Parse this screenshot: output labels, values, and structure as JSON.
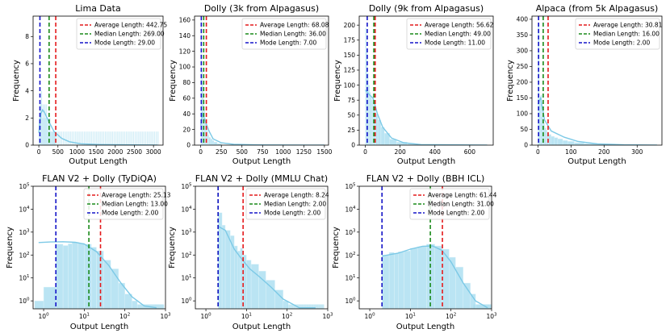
{
  "colors": {
    "hist_fill": "#aee0f1",
    "hist_edge": "#dff3fa",
    "kde_line": "#7cc9e6",
    "average": "#e41a1c",
    "median": "#1a8a1a",
    "mode": "#1515c8"
  },
  "chart_data": [
    {
      "type": "histogram",
      "title": "Lima Data",
      "xlabel": "Output Length",
      "ylabel": "Frequency",
      "yscale": "linear",
      "xlim": [
        -150,
        3250
      ],
      "ylim": [
        0,
        9.5
      ],
      "xticks": [
        0,
        500,
        1000,
        1500,
        2000,
        2500,
        3000
      ],
      "yticks": [
        0,
        2,
        4,
        6,
        8
      ],
      "hist": {
        "bin_width": 15,
        "dense": [
          [
            0,
            2
          ],
          [
            20,
            3
          ],
          [
            40,
            3
          ],
          [
            60,
            4
          ],
          [
            80,
            2
          ],
          [
            100,
            3
          ],
          [
            120,
            2
          ],
          [
            140,
            3
          ],
          [
            160,
            2
          ],
          [
            180,
            3
          ],
          [
            200,
            2
          ],
          [
            220,
            2
          ],
          [
            240,
            1
          ],
          [
            260,
            2
          ],
          [
            280,
            2
          ],
          [
            300,
            1
          ],
          [
            320,
            1
          ],
          [
            350,
            1
          ],
          [
            380,
            1
          ],
          [
            420,
            1
          ]
        ],
        "sparse_range": [
          400,
          3150
        ],
        "sparse_height": 1
      },
      "kde": [
        [
          0,
          0.9
        ],
        [
          50,
          2.3
        ],
        [
          100,
          2.6
        ],
        [
          150,
          2.4
        ],
        [
          250,
          1.8
        ],
        [
          400,
          1.0
        ],
        [
          600,
          0.5
        ],
        [
          800,
          0.25
        ],
        [
          1100,
          0.1
        ],
        [
          1600,
          0.04
        ],
        [
          3100,
          0.0
        ]
      ],
      "stats": {
        "average": 442.75,
        "median": 269.0,
        "mode": 29.0
      },
      "legend": [
        "Average Length: 442.75",
        "Median Length: 269.00",
        "Mode Length: 29.00"
      ]
    },
    {
      "type": "histogram",
      "title": "Dolly (3k from Alpagasus)",
      "xlabel": "Output Length",
      "ylabel": "Frequency",
      "yscale": "linear",
      "xlim": [
        -75,
        1550
      ],
      "ylim": [
        0,
        165
      ],
      "xticks": [
        0,
        250,
        500,
        750,
        1000,
        1250,
        1500
      ],
      "yticks": [
        0,
        20,
        40,
        60,
        80,
        100,
        120,
        140,
        160
      ],
      "hist": {
        "bin_width": 10,
        "dense": [
          [
            0,
            160
          ],
          [
            10,
            95
          ],
          [
            20,
            80
          ],
          [
            30,
            60
          ],
          [
            40,
            45
          ],
          [
            50,
            35
          ],
          [
            60,
            28
          ],
          [
            70,
            22
          ],
          [
            80,
            17
          ],
          [
            90,
            13
          ],
          [
            100,
            10
          ],
          [
            120,
            8
          ],
          [
            140,
            6
          ],
          [
            160,
            4
          ],
          [
            200,
            2
          ],
          [
            250,
            1
          ]
        ],
        "sparse_range": [
          300,
          1400
        ],
        "sparse_height": 0.5
      },
      "kde": [
        [
          0,
          25
        ],
        [
          20,
          40
        ],
        [
          50,
          32
        ],
        [
          100,
          18
        ],
        [
          150,
          8
        ],
        [
          250,
          3
        ],
        [
          400,
          1
        ],
        [
          700,
          0.3
        ],
        [
          1500,
          0
        ]
      ],
      "stats": {
        "average": 68.08,
        "median": 36.0,
        "mode": 7.0
      },
      "legend": [
        "Average Length: 68.08",
        "Median Length: 36.00",
        "Mode Length: 7.00"
      ]
    },
    {
      "type": "histogram",
      "title": "Dolly (9k from Alpagasus)",
      "xlabel": "Output Length",
      "ylabel": "Frequency",
      "yscale": "linear",
      "xlim": [
        -35,
        735
      ],
      "ylim": [
        0,
        215
      ],
      "xticks": [
        0,
        200,
        400,
        600
      ],
      "yticks": [
        0,
        25,
        50,
        75,
        100,
        125,
        150,
        175,
        200
      ],
      "hist": {
        "bin_width": 6,
        "dense": [
          [
            0,
            195
          ],
          [
            6,
            160
          ],
          [
            12,
            120
          ],
          [
            18,
            100
          ],
          [
            24,
            88
          ],
          [
            30,
            80
          ],
          [
            36,
            76
          ],
          [
            42,
            72
          ],
          [
            48,
            66
          ],
          [
            54,
            60
          ],
          [
            60,
            52
          ],
          [
            72,
            42
          ],
          [
            90,
            30
          ],
          [
            110,
            20
          ],
          [
            140,
            10
          ],
          [
            180,
            5
          ],
          [
            240,
            2
          ],
          [
            300,
            1
          ]
        ],
        "sparse_range": [
          330,
          700
        ],
        "sparse_height": 0.5
      },
      "kde": [
        [
          0,
          92
        ],
        [
          20,
          85
        ],
        [
          45,
          78
        ],
        [
          70,
          52
        ],
        [
          100,
          30
        ],
        [
          150,
          12
        ],
        [
          220,
          4
        ],
        [
          320,
          1
        ],
        [
          700,
          0
        ]
      ],
      "stats": {
        "average": 56.62,
        "median": 49.0,
        "mode": 11.0
      },
      "legend": [
        "Average Length: 56.62",
        "Median Length: 49.00",
        "Mode Length: 11.00"
      ]
    },
    {
      "type": "histogram",
      "title": "Alpaca (from 5k Alpagasus)",
      "xlabel": "Output Length",
      "ylabel": "Frequency",
      "yscale": "linear",
      "xlim": [
        -18,
        375
      ],
      "ylim": [
        0,
        410
      ],
      "xticks": [
        0,
        100,
        200,
        300
      ],
      "yticks": [
        0,
        50,
        100,
        150,
        200,
        250,
        300,
        350,
        400
      ],
      "hist": {
        "bin_width": 4,
        "dense": [
          [
            0,
            385
          ],
          [
            4,
            140
          ],
          [
            8,
            160
          ],
          [
            12,
            90
          ],
          [
            16,
            70
          ],
          [
            20,
            55
          ],
          [
            24,
            48
          ],
          [
            28,
            40
          ],
          [
            32,
            34
          ],
          [
            40,
            28
          ],
          [
            50,
            24
          ],
          [
            60,
            20
          ],
          [
            75,
            15
          ],
          [
            90,
            12
          ],
          [
            110,
            8
          ],
          [
            140,
            5
          ],
          [
            180,
            3
          ],
          [
            230,
            1
          ]
        ],
        "sparse_range": [
          260,
          360
        ],
        "sparse_height": 0.5
      },
      "kde": [
        [
          0,
          130
        ],
        [
          8,
          150
        ],
        [
          20,
          80
        ],
        [
          40,
          45
        ],
        [
          80,
          25
        ],
        [
          120,
          12
        ],
        [
          180,
          4
        ],
        [
          260,
          1
        ],
        [
          360,
          0
        ]
      ],
      "stats": {
        "average": 30.81,
        "median": 16.0,
        "mode": 2.0
      },
      "legend": [
        "Average Length: 30.81",
        "Median Length: 16.00",
        "Mode Length: 2.00"
      ]
    },
    {
      "type": "histogram",
      "title": "FLAN V2 + Dolly (TyDiQA)",
      "xlabel": "Output Length",
      "ylabel": "Frequency",
      "yscale": "log",
      "xscale": "log",
      "xlim": [
        0.55,
        1000
      ],
      "ylim": [
        0.45,
        100000
      ],
      "xticks": [
        "10^0",
        "10^1",
        "10^2",
        "10^3"
      ],
      "yticks": [
        "10^0",
        "10^1",
        "10^2",
        "10^3",
        "10^4",
        "10^5"
      ],
      "hist": {
        "dense": [
          [
            0.6,
            1
          ],
          [
            1,
            4
          ],
          [
            2,
            300
          ],
          [
            3,
            260
          ],
          [
            4,
            310
          ],
          [
            5,
            350
          ],
          [
            7,
            330
          ],
          [
            10,
            300
          ],
          [
            15,
            220
          ],
          [
            20,
            150
          ],
          [
            30,
            60
          ],
          [
            45,
            25
          ],
          [
            70,
            6
          ],
          [
            100,
            2
          ],
          [
            150,
            1
          ]
        ],
        "sparse_range": [
          200,
          900
        ],
        "sparse_height": 0.7
      },
      "kde": [
        [
          0.75,
          350
        ],
        [
          1.5,
          370
        ],
        [
          3,
          380
        ],
        [
          6,
          360
        ],
        [
          10,
          300
        ],
        [
          20,
          140
        ],
        [
          40,
          35
        ],
        [
          80,
          6
        ],
        [
          150,
          1.5
        ],
        [
          300,
          0.6
        ],
        [
          600,
          0.5
        ]
      ],
      "stats": {
        "average": 25.13,
        "median": 13.0,
        "mode": 2.0
      },
      "legend": [
        "Average Length: 25.13",
        "Median Length: 13.00",
        "Mode Length: 2.00"
      ]
    },
    {
      "type": "histogram",
      "title": "FLAN V2 + Dolly (MMLU Chat)",
      "xlabel": "Output Length",
      "ylabel": "Frequency",
      "yscale": "log",
      "xscale": "log",
      "xlim": [
        0.55,
        1000
      ],
      "ylim": [
        0.45,
        100000
      ],
      "xticks": [
        "10^0",
        "10^1",
        "10^2",
        "10^3"
      ],
      "yticks": [
        "10^0",
        "10^1",
        "10^2",
        "10^3",
        "10^4",
        "10^5"
      ],
      "hist": {
        "dense": [
          [
            2,
            7000
          ],
          [
            2.5,
            2000
          ],
          [
            3,
            1200
          ],
          [
            4,
            700
          ],
          [
            5,
            250
          ],
          [
            6,
            150
          ],
          [
            7,
            200
          ],
          [
            8,
            100
          ],
          [
            10,
            60
          ],
          [
            13,
            40
          ],
          [
            20,
            20
          ],
          [
            30,
            8
          ],
          [
            50,
            3
          ],
          [
            80,
            1
          ]
        ],
        "sparse_range": [
          100,
          800
        ],
        "sparse_height": 0.7
      },
      "kde": [
        [
          2,
          1800
        ],
        [
          3,
          1200
        ],
        [
          5,
          180
        ],
        [
          8,
          60
        ],
        [
          12,
          25
        ],
        [
          20,
          12
        ],
        [
          40,
          4
        ],
        [
          80,
          1.2
        ],
        [
          200,
          0.5
        ],
        [
          500,
          0.5
        ]
      ],
      "stats": {
        "average": 8.24,
        "median": 2.0,
        "mode": 2.0
      },
      "legend": [
        "Average Length: 8.24",
        "Median Length: 2.00",
        "Mode Length: 2.00"
      ]
    },
    {
      "type": "histogram",
      "title": "FLAN V2 + Dolly (BBH ICL)",
      "xlabel": "Output Length",
      "ylabel": "Frequency",
      "yscale": "log",
      "xscale": "log",
      "xlim": [
        0.55,
        1000
      ],
      "ylim": [
        0.45,
        100000
      ],
      "xticks": [
        "10^0",
        "10^1",
        "10^2",
        "10^3"
      ],
      "yticks": [
        "10^0",
        "10^1",
        "10^2",
        "10^3",
        "10^4",
        "10^5"
      ],
      "hist": {
        "dense": [
          [
            2,
            100
          ],
          [
            3,
            130
          ],
          [
            4,
            120
          ],
          [
            5,
            140
          ],
          [
            7,
            150
          ],
          [
            10,
            200
          ],
          [
            15,
            230
          ],
          [
            25,
            300
          ],
          [
            40,
            250
          ],
          [
            60,
            180
          ],
          [
            90,
            80
          ],
          [
            130,
            30
          ],
          [
            200,
            6
          ],
          [
            300,
            2
          ]
        ],
        "sparse_range": [
          350,
          950
        ],
        "sparse_height": 0.7
      },
      "kde": [
        [
          2,
          90
        ],
        [
          5,
          120
        ],
        [
          10,
          180
        ],
        [
          20,
          240
        ],
        [
          35,
          250
        ],
        [
          60,
          160
        ],
        [
          100,
          50
        ],
        [
          200,
          6
        ],
        [
          400,
          1
        ],
        [
          800,
          0.5
        ]
      ],
      "stats": {
        "average": 61.44,
        "median": 31.0,
        "mode": 2.0
      },
      "legend": [
        "Average Length: 61.44",
        "Median Length: 31.00",
        "Mode Length: 2.00"
      ]
    }
  ]
}
